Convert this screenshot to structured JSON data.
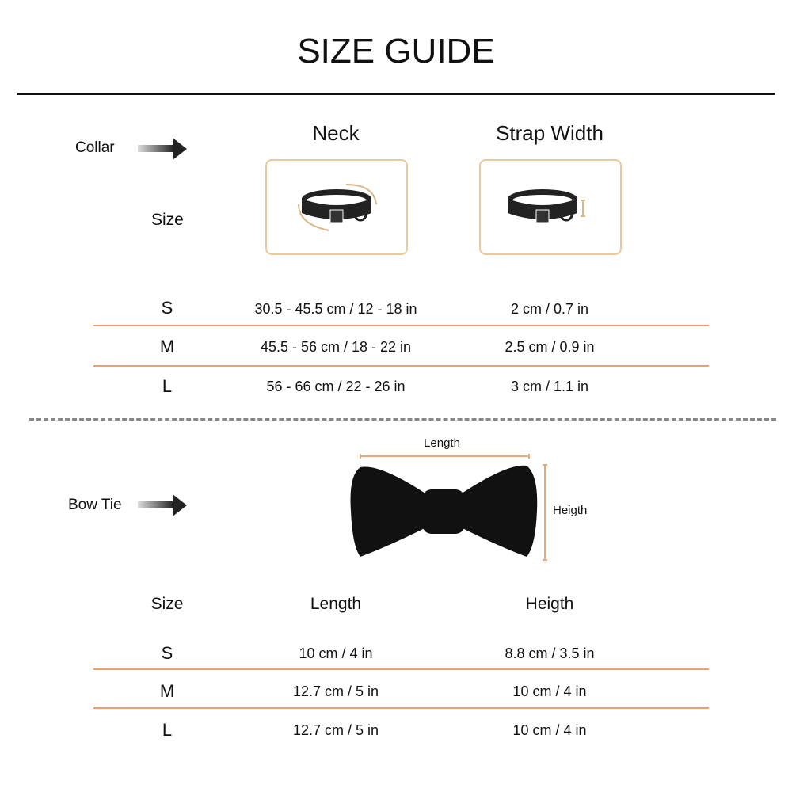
{
  "title": "SIZE GUIDE",
  "accent_color": "#f0a070",
  "collar": {
    "label": "Collar",
    "size_label": "Size",
    "headers": [
      "Neck",
      "Strap Width"
    ],
    "rows": [
      {
        "size": "S",
        "neck": "30.5 - 45.5 cm / 12 - 18 in",
        "strap": "2 cm / 0.7 in"
      },
      {
        "size": "M",
        "neck": "45.5 - 56 cm / 18 - 22 in",
        "strap": "2.5 cm / 0.9 in"
      },
      {
        "size": "L",
        "neck": "56 - 66 cm / 22 - 26 in",
        "strap": "3 cm / 1.1 in"
      }
    ]
  },
  "bowtie": {
    "label": "Bow Tie",
    "diagram_length": "Length",
    "diagram_height": "Heigth",
    "headers": [
      "Size",
      "Length",
      "Heigth"
    ],
    "rows": [
      {
        "size": "S",
        "length": "10 cm / 4 in",
        "height": "8.8 cm / 3.5 in"
      },
      {
        "size": "M",
        "length": "12.7 cm / 5 in",
        "height": "10 cm / 4 in"
      },
      {
        "size": "L",
        "length": "12.7 cm / 5 in",
        "height": "10 cm / 4 in"
      }
    ]
  }
}
